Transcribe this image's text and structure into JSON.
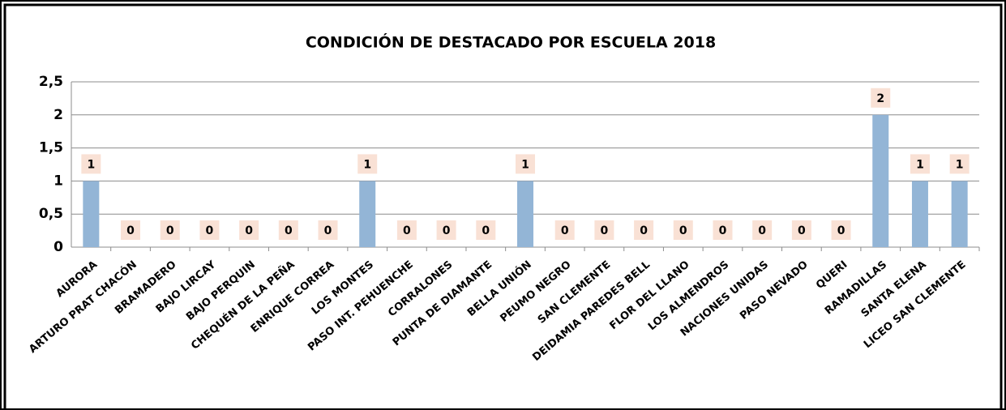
{
  "chart_data": {
    "type": "bar",
    "title": "CONDICIÓN DE DESTACADO POR ESCUELA 2018",
    "categories": [
      "AURORA",
      "ARTURO PRAT CHACÓN",
      "BRAMADERO",
      "BAJO LIRCAY",
      "BAJO PERQUIN",
      "CHEQUÉN DE LA PEÑA",
      "ENRIQUE CORREA",
      "LOS MONTES",
      "PASO INT. PEHUENCHE",
      "CORRALONES",
      "PUNTA DE DIAMANTE",
      "BELLA UNIÓN",
      "PEUMO NEGRO",
      "SAN CLEMENTE",
      "DEIDAMIA PAREDES BELL",
      "FLOR DEL LLANO",
      "LOS ALMENDROS",
      "NACIONES UNIDAS",
      "PASO NEVADO",
      "QUERI",
      "RAMADILLAS",
      "SANTA ELENA",
      "LICEO SAN CLEMENTE"
    ],
    "values": [
      1,
      0,
      0,
      0,
      0,
      0,
      0,
      1,
      0,
      0,
      0,
      1,
      0,
      0,
      0,
      0,
      0,
      0,
      0,
      0,
      2,
      1,
      1
    ],
    "color": "#93b5d6",
    "ylim": [
      0,
      2.5
    ],
    "yticks": [
      0,
      {
        "value": 0.5,
        "label": "0,5"
      },
      1,
      {
        "value": 1.5,
        "label": "1,5"
      },
      2,
      {
        "value": 2.5,
        "label": "2,5"
      }
    ],
    "grid": true
  }
}
